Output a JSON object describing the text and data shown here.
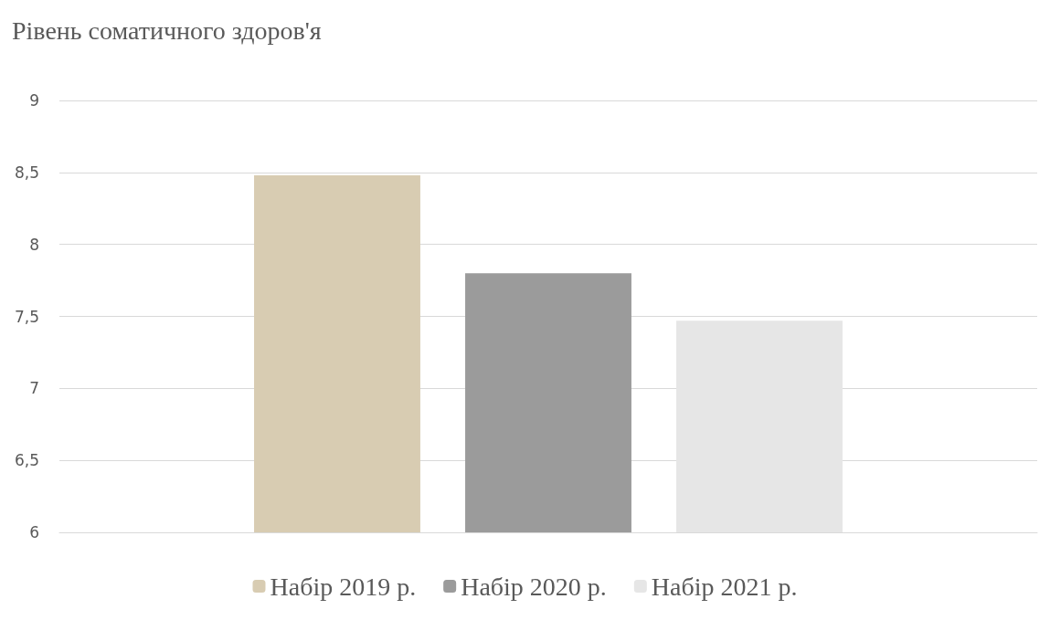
{
  "chart_data": {
    "type": "bar",
    "title": "Рівень соматичного здоров'я",
    "categories": [
      null
    ],
    "series": [
      {
        "name": "Набір 2019 р.",
        "color": "#d8ccb2",
        "values": [
          8.48
        ]
      },
      {
        "name": "Набір 2020 р.",
        "color": "#9b9b9b",
        "values": [
          7.8
        ]
      },
      {
        "name": "Набір 2021 р.",
        "color": "#e6e6e6",
        "values": [
          7.47
        ]
      }
    ],
    "ylim": [
      6,
      9
    ],
    "yticks": [
      6,
      {
        "value": 6.5,
        "label": "6,5"
      },
      7,
      {
        "value": 7.5,
        "label": "7,5"
      },
      8,
      {
        "value": 8.5,
        "label": "8,5"
      },
      9
    ],
    "grid": "y",
    "legend": "bottom"
  }
}
